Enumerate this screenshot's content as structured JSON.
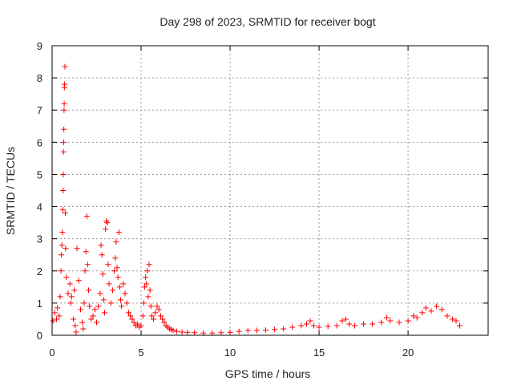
{
  "chart_data": {
    "type": "scatter",
    "title": "Day 298 of 2023, SRMTID for receiver bogt",
    "xlabel": "GPS time / hours",
    "ylabel": "SRMTID / TECUs",
    "xlim": [
      0,
      24.5
    ],
    "ylim": [
      0,
      9
    ],
    "xticks": [
      0,
      5,
      10,
      15,
      20
    ],
    "yticks": [
      0,
      1,
      2,
      3,
      4,
      5,
      6,
      7,
      8,
      9
    ],
    "grid": true,
    "marker": "+",
    "color": "#ff0000",
    "series": [
      {
        "name": "SRMTID",
        "points": [
          [
            0.05,
            0.45
          ],
          [
            0.15,
            0.7
          ],
          [
            0.25,
            0.5
          ],
          [
            0.3,
            0.85
          ],
          [
            0.4,
            0.6
          ],
          [
            0.45,
            1.2
          ],
          [
            0.5,
            2.0
          ],
          [
            0.52,
            2.5
          ],
          [
            0.55,
            2.8
          ],
          [
            0.58,
            3.2
          ],
          [
            0.6,
            3.9
          ],
          [
            0.62,
            4.5
          ],
          [
            0.63,
            5.0
          ],
          [
            0.64,
            5.7
          ],
          [
            0.65,
            6.0
          ],
          [
            0.66,
            6.4
          ],
          [
            0.67,
            7.0
          ],
          [
            0.68,
            7.2
          ],
          [
            0.69,
            7.7
          ],
          [
            0.7,
            7.8
          ],
          [
            0.72,
            8.35
          ],
          [
            0.74,
            3.8
          ],
          [
            0.76,
            2.7
          ],
          [
            0.8,
            1.8
          ],
          [
            0.9,
            1.3
          ],
          [
            1.0,
            1.6
          ],
          [
            1.05,
            1.0
          ],
          [
            1.1,
            1.2
          ],
          [
            1.2,
            0.5
          ],
          [
            1.25,
            1.4
          ],
          [
            1.3,
            0.3
          ],
          [
            1.35,
            0.1
          ],
          [
            1.4,
            2.7
          ],
          [
            1.5,
            1.7
          ],
          [
            1.6,
            0.8
          ],
          [
            1.7,
            0.4
          ],
          [
            1.75,
            0.2
          ],
          [
            1.8,
            1.0
          ],
          [
            1.85,
            2.0
          ],
          [
            1.9,
            2.6
          ],
          [
            1.95,
            3.7
          ],
          [
            2.0,
            2.2
          ],
          [
            2.05,
            1.4
          ],
          [
            2.1,
            0.9
          ],
          [
            2.2,
            0.5
          ],
          [
            2.3,
            0.6
          ],
          [
            2.4,
            0.8
          ],
          [
            2.5,
            0.4
          ],
          [
            2.6,
            0.9
          ],
          [
            2.7,
            1.3
          ],
          [
            2.75,
            2.8
          ],
          [
            2.8,
            2.5
          ],
          [
            2.85,
            1.9
          ],
          [
            2.9,
            1.1
          ],
          [
            2.95,
            0.7
          ],
          [
            3.0,
            3.3
          ],
          [
            3.05,
            3.55
          ],
          [
            3.1,
            3.5
          ],
          [
            3.15,
            2.2
          ],
          [
            3.2,
            1.6
          ],
          [
            3.3,
            1.0
          ],
          [
            3.4,
            1.4
          ],
          [
            3.5,
            2.0
          ],
          [
            3.55,
            2.4
          ],
          [
            3.6,
            2.9
          ],
          [
            3.65,
            2.1
          ],
          [
            3.7,
            1.8
          ],
          [
            3.75,
            3.2
          ],
          [
            3.8,
            1.5
          ],
          [
            3.85,
            1.1
          ],
          [
            3.9,
            0.9
          ],
          [
            4.0,
            1.6
          ],
          [
            4.1,
            1.3
          ],
          [
            4.2,
            1.0
          ],
          [
            4.3,
            0.7
          ],
          [
            4.4,
            0.6
          ],
          [
            4.5,
            0.5
          ],
          [
            4.6,
            0.4
          ],
          [
            4.7,
            0.3
          ],
          [
            4.8,
            0.35
          ],
          [
            4.9,
            0.25
          ],
          [
            5.0,
            0.3
          ],
          [
            5.1,
            0.6
          ],
          [
            5.15,
            1.0
          ],
          [
            5.2,
            1.5
          ],
          [
            5.25,
            1.8
          ],
          [
            5.3,
            1.6
          ],
          [
            5.35,
            2.0
          ],
          [
            5.4,
            1.2
          ],
          [
            5.45,
            2.2
          ],
          [
            5.5,
            1.4
          ],
          [
            5.55,
            0.9
          ],
          [
            5.6,
            0.6
          ],
          [
            5.7,
            0.5
          ],
          [
            5.8,
            0.7
          ],
          [
            5.9,
            0.9
          ],
          [
            6.0,
            0.8
          ],
          [
            6.1,
            0.6
          ],
          [
            6.2,
            0.5
          ],
          [
            6.3,
            0.4
          ],
          [
            6.4,
            0.3
          ],
          [
            6.5,
            0.25
          ],
          [
            6.6,
            0.2
          ],
          [
            6.7,
            0.18
          ],
          [
            6.8,
            0.15
          ],
          [
            7.0,
            0.12
          ],
          [
            7.3,
            0.1
          ],
          [
            7.6,
            0.09
          ],
          [
            8.0,
            0.08
          ],
          [
            8.5,
            0.07
          ],
          [
            9.0,
            0.07
          ],
          [
            9.5,
            0.08
          ],
          [
            10.0,
            0.09
          ],
          [
            10.5,
            0.12
          ],
          [
            11.0,
            0.15
          ],
          [
            11.5,
            0.15
          ],
          [
            12.0,
            0.16
          ],
          [
            12.5,
            0.18
          ],
          [
            13.0,
            0.2
          ],
          [
            13.5,
            0.25
          ],
          [
            14.0,
            0.3
          ],
          [
            14.3,
            0.35
          ],
          [
            14.5,
            0.45
          ],
          [
            14.7,
            0.3
          ],
          [
            15.0,
            0.25
          ],
          [
            15.5,
            0.28
          ],
          [
            16.0,
            0.3
          ],
          [
            16.3,
            0.45
          ],
          [
            16.5,
            0.5
          ],
          [
            16.7,
            0.35
          ],
          [
            17.0,
            0.3
          ],
          [
            17.5,
            0.35
          ],
          [
            18.0,
            0.35
          ],
          [
            18.5,
            0.4
          ],
          [
            18.8,
            0.55
          ],
          [
            19.0,
            0.45
          ],
          [
            19.5,
            0.4
          ],
          [
            20.0,
            0.45
          ],
          [
            20.3,
            0.6
          ],
          [
            20.5,
            0.55
          ],
          [
            20.8,
            0.7
          ],
          [
            21.0,
            0.85
          ],
          [
            21.3,
            0.75
          ],
          [
            21.6,
            0.9
          ],
          [
            21.9,
            0.8
          ],
          [
            22.2,
            0.6
          ],
          [
            22.5,
            0.5
          ],
          [
            22.7,
            0.45
          ],
          [
            22.9,
            0.3
          ]
        ]
      }
    ]
  }
}
